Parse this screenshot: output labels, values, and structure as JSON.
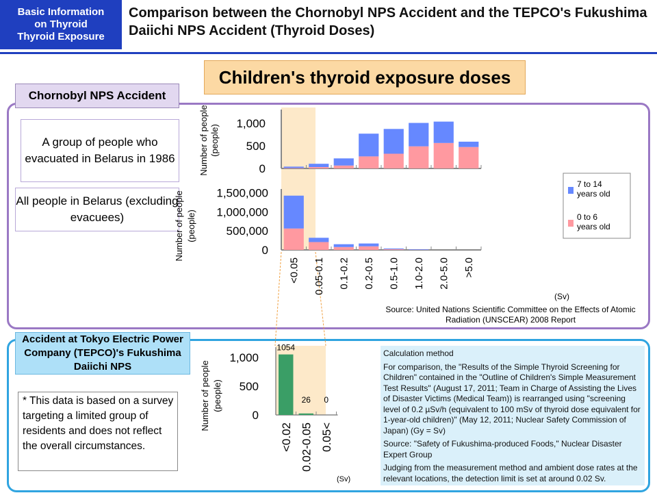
{
  "header": {
    "badge": "Basic Information on Thyroid Thyroid Exposure",
    "badge_lines": [
      "Basic Information",
      "on Thyroid",
      "Thyroid Exposure"
    ],
    "title": "Comparison between the Chornobyl NPS Accident and the TEPCO's Fukushima Daiichi NPS Accident (Thyroid Doses)"
  },
  "main_title": "Children's thyroid exposure doses",
  "chornobyl": {
    "label": "Chornobyl NPS Accident",
    "group1": "A group of people who evacuated in Belarus in 1986",
    "group2": "All people in Belarus (excluding evacuees)",
    "source": "Source: United Nations Scientific Committee on the Effects of Atomic Radiation (UNSCEAR) 2008 Report"
  },
  "tepco": {
    "label": "Accident at Tokyo Electric Power Company (TEPCO)'s Fukushima Daiichi NPS",
    "note": "* This data is based on a survey targeting a limited group of residents and does not reflect the overall circumstances.",
    "calc_title": "Calculation method",
    "calc_body": "For comparison, the \"Results of the Simple Thyroid Screening for Children\" contained in the \"Outline of Children's Simple Measurement Test Results\" (August 17, 2011; Team in Charge of Assisting the Lives of Disaster Victims (Medical Team)) is rearranged using \"screening level of 0.2 µSv/h (equivalent to 100 mSv of thyroid dose equivalent for 1-year-old children)\" (May 12, 2011; Nuclear Safety Commission of Japan) (Gy = Sv)",
    "calc_source": "Source: \"Safety of Fukushima-produced Foods,\" Nuclear Disaster Expert Group",
    "calc_limit": "Judging from the measurement method and ambient dose rates at the relevant locations, the detection limit is set at around 0.02 Sv."
  },
  "colors": {
    "age_7_14": "#6688ff",
    "age_0_6": "#ff99a0",
    "fukushima": "#3a9e66",
    "highlight": "#fde9c9"
  },
  "chart_data": [
    {
      "type": "bar",
      "stacked": true,
      "ylabel": "Number of people (people)",
      "xlabel": "(Sv)",
      "ylim": [
        0,
        1300
      ],
      "yticks": [
        "0",
        "500",
        "1,000"
      ],
      "ytick_values": [
        0,
        500,
        1000
      ],
      "categories": [
        "<0.05",
        "0.05-0.1",
        "0.1-0.2",
        "0.2-0.5",
        "0.5-1.0",
        "1.0-2.0",
        "2.0-5.0",
        ">5.0"
      ],
      "series": [
        {
          "name": "0 to 6 years old",
          "values": [
            10,
            30,
            64,
            266,
            325,
            488,
            562,
            473
          ]
        },
        {
          "name": "7 to 14 years old",
          "values": [
            30,
            73,
            158,
            502,
            547,
            517,
            472,
            118
          ]
        }
      ],
      "legend": "right"
    },
    {
      "type": "bar",
      "stacked": true,
      "ylabel": "Number of people (people)",
      "xlabel": "(Sv)",
      "ylim": [
        0,
        1600000
      ],
      "yticks": [
        "0",
        "500,000",
        "1,000,000",
        "1,500,000"
      ],
      "ytick_values": [
        0,
        500000,
        1000000,
        1500000
      ],
      "categories": [
        "<0.05",
        "0.05-0.1",
        "0.1-0.2",
        "0.2-0.5",
        "0.5-1.0",
        "1.0-2.0",
        "2.0-5.0",
        ">5.0"
      ],
      "series": [
        {
          "name": "0 to 6 years old",
          "values": [
            562000,
            206000,
            75000,
            94000,
            19000,
            5000,
            0,
            0
          ]
        },
        {
          "name": "7 to 14 years old",
          "values": [
            863000,
            113000,
            75000,
            75000,
            19000,
            14000,
            0,
            0
          ]
        }
      ]
    },
    {
      "type": "bar",
      "ylabel": "Number of people (people)",
      "xlabel": "(Sv)",
      "ylim": [
        0,
        1300
      ],
      "yticks": [
        "0",
        "500",
        "1,000"
      ],
      "ytick_values": [
        0,
        500,
        1000
      ],
      "categories": [
        "<0.02",
        "0.02-0.05",
        "0.05<"
      ],
      "values": [
        1054,
        26,
        0
      ],
      "data_labels": [
        "1054",
        "26",
        "0"
      ]
    }
  ]
}
